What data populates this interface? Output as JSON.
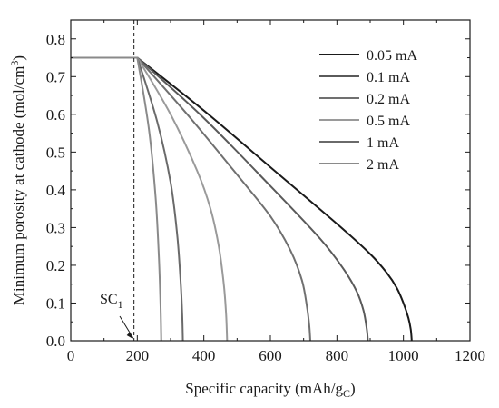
{
  "chart_data": {
    "type": "line",
    "xlabel": "Specific capacity (mAh/g",
    "xlabel_sub": "C",
    "xlabel_end": ")",
    "ylabel": "Minimum porosity at cathode (mol/cm",
    "ylabel_sup": "3",
    "ylabel_end": ")",
    "xlim": [
      0,
      1200
    ],
    "ylim": [
      0,
      0.85
    ],
    "x_ticks": [
      0,
      200,
      400,
      600,
      800,
      1000,
      1200
    ],
    "y_ticks": [
      0.0,
      0.1,
      0.2,
      0.3,
      0.4,
      0.5,
      0.6,
      0.7,
      0.8
    ],
    "legend_position": "top-right",
    "grid": false,
    "annotation": {
      "label": "SC",
      "subscript": "1",
      "x": 190
    },
    "series": [
      {
        "name": "0.05 mA",
        "color": "#1a1a1a",
        "x": [
          0,
          200,
          400,
          600,
          800,
          900,
          950,
          980,
          1000,
          1015,
          1022,
          1025
        ],
        "y": [
          0.75,
          0.75,
          0.61,
          0.46,
          0.31,
          0.23,
          0.18,
          0.14,
          0.1,
          0.06,
          0.03,
          0.0
        ]
      },
      {
        "name": "0.1 mA",
        "color": "#5a5a5a",
        "x": [
          0,
          200,
          400,
          600,
          750,
          820,
          860,
          880,
          890,
          893
        ],
        "y": [
          0.75,
          0.75,
          0.59,
          0.41,
          0.27,
          0.19,
          0.13,
          0.08,
          0.03,
          0.0
        ]
      },
      {
        "name": "0.2 mA",
        "color": "#707070",
        "x": [
          0,
          200,
          350,
          500,
          600,
          660,
          695,
          710,
          717,
          720
        ],
        "y": [
          0.75,
          0.75,
          0.6,
          0.44,
          0.33,
          0.24,
          0.16,
          0.09,
          0.04,
          0.0
        ]
      },
      {
        "name": "0.5 mA",
        "color": "#9a9a9a",
        "x": [
          0,
          200,
          300,
          380,
          420,
          445,
          460,
          467,
          470
        ],
        "y": [
          0.75,
          0.75,
          0.6,
          0.45,
          0.35,
          0.25,
          0.15,
          0.07,
          0.0
        ]
      },
      {
        "name": "1 mA",
        "color": "#6a6a6a",
        "x": [
          0,
          200,
          260,
          300,
          320,
          330,
          335,
          337
        ],
        "y": [
          0.75,
          0.75,
          0.58,
          0.42,
          0.28,
          0.16,
          0.07,
          0.0
        ]
      },
      {
        "name": "2 mA",
        "color": "#8a8a8a",
        "x": [
          0,
          200,
          235,
          255,
          265,
          270,
          272
        ],
        "y": [
          0.75,
          0.75,
          0.56,
          0.38,
          0.22,
          0.09,
          0.0
        ]
      }
    ]
  }
}
